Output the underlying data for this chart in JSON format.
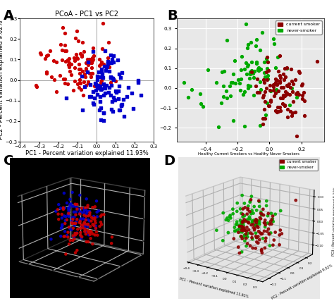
{
  "title_A": "PCoA - PC1 vs PC2",
  "xlabel_A": "PC1 - Percent variation explained 11.93%",
  "ylabel_A": "PC2 - Percent variation explained 9.02%",
  "xlim_A": [
    -0.4,
    0.3
  ],
  "ylim_A": [
    -0.3,
    0.3
  ],
  "color_red": "#cc0000",
  "color_blue": "#0000cc",
  "color_green": "#00aa00",
  "color_dark_red": "#8b0000",
  "seed_A": 42,
  "n_red_A": 110,
  "n_blue_A": 100,
  "panel_label_fontsize": 14,
  "title_fontsize": 7,
  "axis_label_fontsize": 6,
  "tick_fontsize": 5,
  "title_D": "Healthy Current Smokers vs Healthy Never Smokers",
  "xlabel_D": "PC1 - Percent variation explained 11.93%",
  "ylabel_D": "PC2 - Percent variation explained 9.02%",
  "zlabel_D": "PC3 - Percent variation explained 5.10%",
  "bg_color_C": "#000000",
  "bg_color_D": "#e8e8e8"
}
